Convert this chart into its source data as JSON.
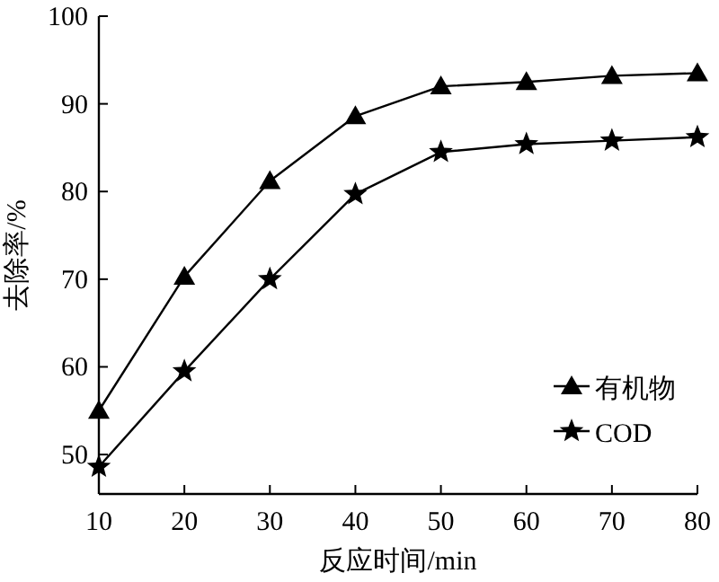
{
  "chart_data": {
    "type": "line",
    "xlabel": "反应时间/min",
    "ylabel": "去除率/%",
    "x": [
      10,
      20,
      30,
      40,
      50,
      60,
      70,
      80
    ],
    "series": [
      {
        "name": "有机物",
        "color": "#000000",
        "marker": "triangle",
        "values": [
          55,
          70.3,
          81.2,
          88.6,
          92,
          92.5,
          93.2,
          93.5
        ]
      },
      {
        "name": "COD",
        "color": "#000000",
        "marker": "star",
        "values": [
          48.6,
          59.5,
          70,
          79.7,
          84.5,
          85.4,
          85.8,
          86.2
        ]
      }
    ],
    "xlim": [
      10,
      80
    ],
    "xticks": [
      10,
      20,
      30,
      40,
      50,
      60,
      70,
      80
    ],
    "ylim": [
      45.5,
      100
    ],
    "yticks": [
      50,
      60,
      70,
      80,
      90,
      100
    ],
    "legend": "bottom right",
    "grid": false,
    "line_style": "solid"
  }
}
